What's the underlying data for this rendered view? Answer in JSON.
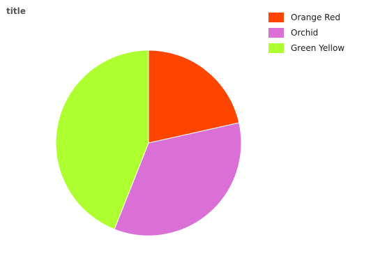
{
  "chart_data": {
    "type": "pie",
    "title": "title",
    "slices": [
      {
        "label": "Orange Red",
        "value": 21.5,
        "color": "#ff4500"
      },
      {
        "label": "Orchid",
        "value": 34.5,
        "color": "#da70d6"
      },
      {
        "label": "Green Yellow",
        "value": 44.0,
        "color": "#adff2f"
      }
    ],
    "legend_position": "top-right"
  }
}
